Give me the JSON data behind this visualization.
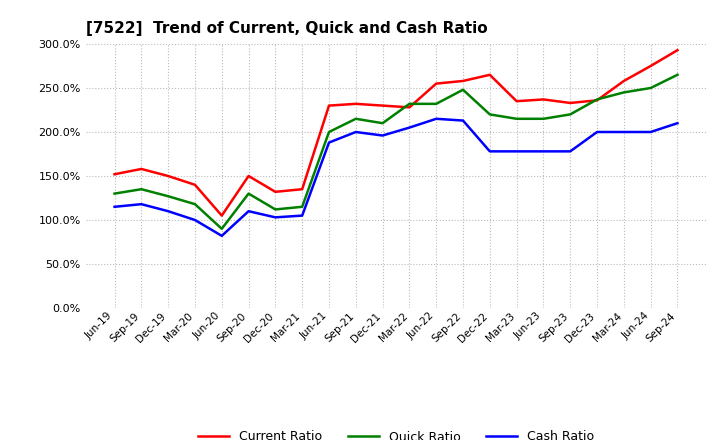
{
  "title": "[7522]  Trend of Current, Quick and Cash Ratio",
  "x_labels": [
    "Jun-19",
    "Sep-19",
    "Dec-19",
    "Mar-20",
    "Jun-20",
    "Sep-20",
    "Dec-20",
    "Mar-21",
    "Jun-21",
    "Sep-21",
    "Dec-21",
    "Mar-22",
    "Jun-22",
    "Sep-22",
    "Dec-22",
    "Mar-23",
    "Jun-23",
    "Sep-23",
    "Dec-23",
    "Mar-24",
    "Jun-24",
    "Sep-24"
  ],
  "current_ratio": [
    152,
    158,
    150,
    140,
    105,
    150,
    132,
    135,
    230,
    232,
    230,
    228,
    255,
    258,
    265,
    235,
    237,
    233,
    236,
    258,
    275,
    293
  ],
  "quick_ratio": [
    130,
    135,
    127,
    118,
    90,
    130,
    112,
    115,
    200,
    215,
    210,
    232,
    232,
    248,
    220,
    215,
    215,
    220,
    237,
    245,
    250,
    265
  ],
  "cash_ratio": [
    115,
    118,
    110,
    100,
    82,
    110,
    103,
    105,
    188,
    200,
    196,
    205,
    215,
    213,
    178,
    178,
    178,
    178,
    200,
    200,
    200,
    210
  ],
  "current_color": "#ff0000",
  "quick_color": "#008000",
  "cash_color": "#0000ff",
  "ylim": [
    0,
    300
  ],
  "yticks": [
    0,
    50,
    100,
    150,
    200,
    250,
    300
  ],
  "background_color": "#ffffff",
  "grid_color": "#bbbbbb",
  "legend_labels": [
    "Current Ratio",
    "Quick Ratio",
    "Cash Ratio"
  ]
}
